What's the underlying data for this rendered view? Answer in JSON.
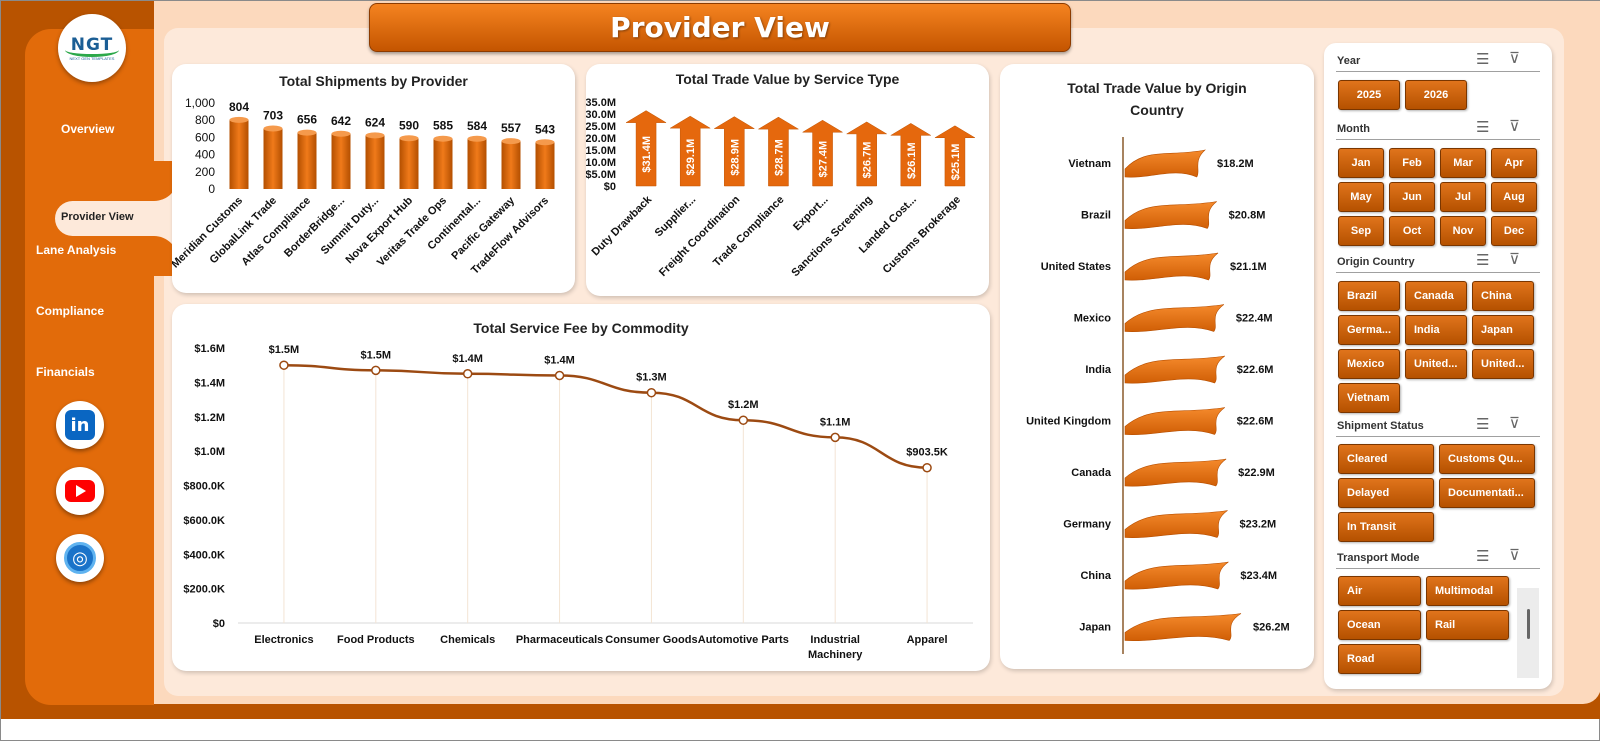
{
  "title": "Provider View",
  "logo": {
    "text": "NGT",
    "subtext": "NEXT GEN TEMPLATES"
  },
  "nav": {
    "items": [
      "Overview",
      "Provider View",
      "Lane Analysis",
      "Compliance",
      "Financials"
    ],
    "active": "Provider View"
  },
  "social": [
    "linkedin-icon",
    "youtube-icon",
    "globe-icon"
  ],
  "colors": {
    "accent": "#e26b0a",
    "dark": "#b85300",
    "background": "#fde9da",
    "line": "#9c4a12"
  },
  "charts": {
    "shipments": {
      "title": "Total Shipments by Provider",
      "type": "bar",
      "categories": [
        "Meridian Customs",
        "GlobalLink Trade",
        "Atlas Compliance",
        "BorderBridge...",
        "Summit Duty...",
        "Nova Export Hub",
        "Veritas Trade Ops",
        "Continental...",
        "Pacific Gateway",
        "TradeFlow Advisors"
      ],
      "values": [
        804,
        703,
        656,
        642,
        624,
        590,
        585,
        584,
        557,
        543
      ],
      "yticks": [
        "1,000",
        "800",
        "600",
        "400",
        "200",
        "0"
      ]
    },
    "service_type": {
      "title": "Total Trade Value by Service Type",
      "type": "bar",
      "categories": [
        "Duty Drawback",
        "Supplier...",
        "Freight Coordination",
        "Trade Compliance",
        "Export...",
        "Sanctions Screening",
        "Landed Cost...",
        "Customs Brokerage"
      ],
      "values": [
        31.4,
        29.1,
        28.9,
        28.7,
        27.4,
        26.7,
        26.1,
        25.1
      ],
      "labels": [
        "$31.4M",
        "$29.1M",
        "$28.9M",
        "$28.7M",
        "$27.4M",
        "$26.7M",
        "$26.1M",
        "$25.1M"
      ],
      "yticks": [
        "$35.0M",
        "$30.0M",
        "$25.0M",
        "$20.0M",
        "$15.0M",
        "$10.0M",
        "$5.0M",
        "$0"
      ]
    },
    "origin": {
      "title": "Total Trade Value by Origin Country",
      "type": "bar",
      "categories": [
        "Vietnam",
        "Brazil",
        "United States",
        "Mexico",
        "India",
        "United Kingdom",
        "Canada",
        "Germany",
        "China",
        "Japan"
      ],
      "values": [
        18.2,
        20.8,
        21.1,
        22.4,
        22.6,
        22.6,
        22.9,
        23.2,
        23.4,
        26.2
      ],
      "labels": [
        "$18.2M",
        "$20.8M",
        "$21.1M",
        "$22.4M",
        "$22.6M",
        "$22.6M",
        "$22.9M",
        "$23.2M",
        "$23.4M",
        "$26.2M"
      ]
    },
    "commodity": {
      "title": "Total Service Fee by Commodity",
      "type": "line",
      "categories": [
        "Electronics",
        "Food Products",
        "Chemicals",
        "Pharmaceuticals",
        "Consumer Goods",
        "Automotive Parts",
        "Industrial Machinery",
        "Apparel"
      ],
      "values": [
        1.5,
        1.47,
        1.45,
        1.44,
        1.34,
        1.18,
        1.08,
        0.9035
      ],
      "labels": [
        "$1.5M",
        "$1.5M",
        "$1.4M",
        "$1.4M",
        "$1.3M",
        "$1.2M",
        "$1.1M",
        "$903.5K"
      ],
      "yticks": [
        "$1.6M",
        "$1.4M",
        "$1.2M",
        "$1.0M",
        "$800.0K",
        "$600.0K",
        "$400.0K",
        "$200.0K",
        "$0"
      ]
    }
  },
  "chart_data": [
    {
      "type": "bar",
      "title": "Total Shipments by Provider",
      "categories": [
        "Meridian Customs",
        "GlobalLink Trade",
        "Atlas Compliance",
        "BorderBridge...",
        "Summit Duty...",
        "Nova Export Hub",
        "Veritas Trade Ops",
        "Continental...",
        "Pacific Gateway",
        "TradeFlow Advisors"
      ],
      "values": [
        804,
        703,
        656,
        642,
        624,
        590,
        585,
        584,
        557,
        543
      ],
      "ylim": [
        0,
        1000
      ]
    },
    {
      "type": "bar",
      "title": "Total Trade Value by Service Type",
      "categories": [
        "Duty Drawback",
        "Supplier...",
        "Freight Coordination",
        "Trade Compliance",
        "Export...",
        "Sanctions Screening",
        "Landed Cost...",
        "Customs Brokerage"
      ],
      "values": [
        31.4,
        29.1,
        28.9,
        28.7,
        27.4,
        26.7,
        26.1,
        25.1
      ],
      "ylim": [
        0,
        35
      ]
    },
    {
      "type": "bar",
      "title": "Total Trade Value by Origin Country",
      "categories": [
        "Vietnam",
        "Brazil",
        "United States",
        "Mexico",
        "India",
        "United Kingdom",
        "Canada",
        "Germany",
        "China",
        "Japan"
      ],
      "values": [
        18.2,
        20.8,
        21.1,
        22.4,
        22.6,
        22.6,
        22.9,
        23.2,
        23.4,
        26.2
      ]
    },
    {
      "type": "line",
      "title": "Total Service Fee by Commodity",
      "categories": [
        "Electronics",
        "Food Products",
        "Chemicals",
        "Pharmaceuticals",
        "Consumer Goods",
        "Automotive Parts",
        "Industrial Machinery",
        "Apparel"
      ],
      "values": [
        1.5,
        1.47,
        1.45,
        1.44,
        1.34,
        1.18,
        1.08,
        0.9035
      ],
      "ylim": [
        0,
        1.6
      ]
    }
  ],
  "slicers": {
    "year": {
      "label": "Year",
      "options": [
        "2025",
        "2026"
      ]
    },
    "month": {
      "label": "Month",
      "options": [
        "Jan",
        "Feb",
        "Mar",
        "Apr",
        "May",
        "Jun",
        "Jul",
        "Aug",
        "Sep",
        "Oct",
        "Nov",
        "Dec"
      ]
    },
    "origin": {
      "label": "Origin Country",
      "options": [
        "Brazil",
        "Canada",
        "China",
        "Germa...",
        "India",
        "Japan",
        "Mexico",
        "United...",
        "United...",
        "Vietnam"
      ]
    },
    "status": {
      "label": "Shipment Status",
      "options": [
        "Cleared",
        "Customs Qu...",
        "Delayed",
        "Documentati...",
        "In Transit"
      ]
    },
    "transport": {
      "label": "Transport Mode",
      "options": [
        "Air",
        "Multimodal",
        "Ocean",
        "Rail",
        "Road"
      ]
    }
  }
}
